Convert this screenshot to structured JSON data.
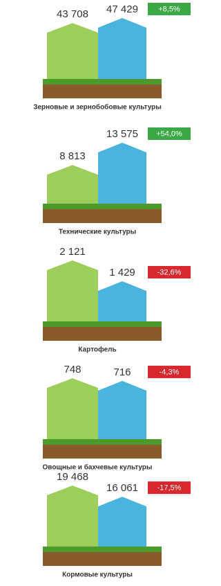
{
  "chart_data": [
    {
      "type": "bar",
      "title": "Зерновые и зернобобовые культуры",
      "values": [
        43708,
        47429
      ],
      "value_labels": [
        "43 708",
        "47 429"
      ],
      "change": "+8,5%",
      "change_color": "#3aa845",
      "colors": [
        "#8cc63f",
        "#2aa7d6"
      ]
    },
    {
      "type": "bar",
      "title": "Технические культуры",
      "values": [
        8813,
        13575
      ],
      "value_labels": [
        "8 813",
        "13 575"
      ],
      "change": "+54,0%",
      "change_color": "#3aa845",
      "colors": [
        "#8cc63f",
        "#2aa7d6"
      ]
    },
    {
      "type": "bar",
      "title": "Картофель",
      "values": [
        2121,
        1429
      ],
      "value_labels": [
        "2 121",
        "1 429"
      ],
      "change": "-32,6%",
      "change_color": "#d9272e",
      "colors": [
        "#8cc63f",
        "#2aa7d6"
      ]
    },
    {
      "type": "bar",
      "title": "Овощные и бахчевые культуры",
      "values": [
        748,
        716
      ],
      "value_labels": [
        "748",
        "716"
      ],
      "change": "-4,3%",
      "change_color": "#d9272e",
      "colors": [
        "#8cc63f",
        "#2aa7d6"
      ]
    },
    {
      "type": "bar",
      "title": "Кормовые культуры",
      "values": [
        19468,
        16061
      ],
      "value_labels": [
        "19 468",
        "16 061"
      ],
      "change": "-17,5%",
      "change_color": "#d9272e",
      "colors": [
        "#8cc63f",
        "#2aa7d6"
      ]
    }
  ]
}
